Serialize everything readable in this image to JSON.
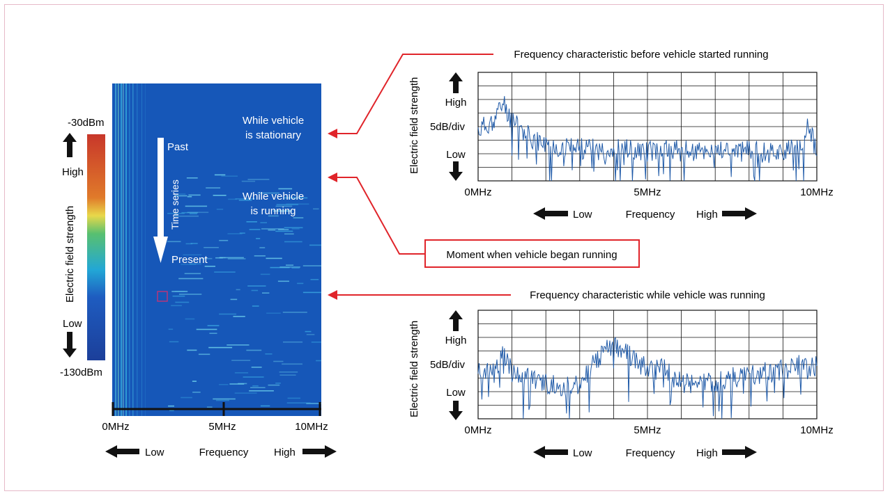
{
  "waterfall": {
    "scale_top": "-30dBm",
    "scale_bottom": "-130dBm",
    "scale_high": "High",
    "scale_low": "Low",
    "scale_axis_label": "Electric field strength",
    "time_past": "Past",
    "time_present": "Present",
    "time_series": "Time series",
    "stationary_line1": "While vehicle",
    "stationary_line2": "is stationary",
    "running_line1": "While vehicle",
    "running_line2": "is running",
    "x_ticks": [
      "0MHz",
      "5MHz",
      "10MHz"
    ],
    "freq_low": "Low",
    "freq_label": "Frequency",
    "freq_high": "High",
    "colorbar_colors": [
      "#c8372a",
      "#e07a2a",
      "#e8d84a",
      "#58c070",
      "#22a7d6",
      "#1e5cc0",
      "#1c3f9a"
    ],
    "background_color": "#1657b8"
  },
  "callout": {
    "label": "Moment when vehicle began running",
    "color": "#e0242a"
  },
  "chart_data": [
    {
      "type": "line",
      "title": "Frequency characteristic before vehicle started running",
      "ylabel": "Electric field strength",
      "y_high": "High",
      "y_scale": "5dB/div",
      "y_low": "Low",
      "xticks": [
        "0MHz",
        "5MHz",
        "10MHz"
      ],
      "xlim": [
        0,
        10
      ],
      "ylim": [
        0,
        8
      ],
      "grid": true,
      "freq_low": "Low",
      "freq_label": "Frequency",
      "freq_high": "High",
      "line_color": "#1f5aa8",
      "x": [
        0,
        0.5,
        0.75,
        1,
        1.5,
        2,
        2.5,
        3,
        3.5,
        4,
        4.5,
        5,
        5.5,
        6,
        6.5,
        7,
        7.5,
        8,
        8.5,
        9,
        9.5,
        9.75,
        10
      ],
      "values": [
        3.7,
        4.6,
        5.8,
        4.3,
        3.3,
        2.6,
        2.5,
        2.4,
        2.3,
        2.4,
        2.3,
        2.2,
        2.3,
        2.2,
        2.1,
        2.3,
        2.2,
        2.2,
        2.1,
        2.2,
        2.3,
        4.2,
        2.0
      ]
    },
    {
      "type": "line",
      "title": "Frequency characteristic while vehicle was running",
      "ylabel": "Electric field strength",
      "y_high": "High",
      "y_scale": "5dB/div",
      "y_low": "Low",
      "xticks": [
        "0MHz",
        "5MHz",
        "10MHz"
      ],
      "xlim": [
        0,
        10
      ],
      "ylim": [
        0,
        8
      ],
      "grid": true,
      "freq_low": "Low",
      "freq_label": "Frequency",
      "freq_high": "High",
      "line_color": "#1f5aa8",
      "x": [
        0,
        0.5,
        0.75,
        1,
        1.5,
        2,
        2.5,
        3,
        3.5,
        4,
        4.5,
        5,
        5.5,
        6,
        6.5,
        7,
        7.5,
        8,
        8.5,
        9,
        9.5,
        10
      ],
      "values": [
        3.6,
        3.4,
        5.4,
        3.3,
        3.0,
        2.6,
        2.4,
        2.6,
        4.4,
        5.6,
        4.6,
        3.6,
        3.7,
        2.6,
        2.5,
        2.7,
        3.0,
        3.2,
        3.4,
        3.6,
        4.0,
        3.8
      ]
    }
  ]
}
